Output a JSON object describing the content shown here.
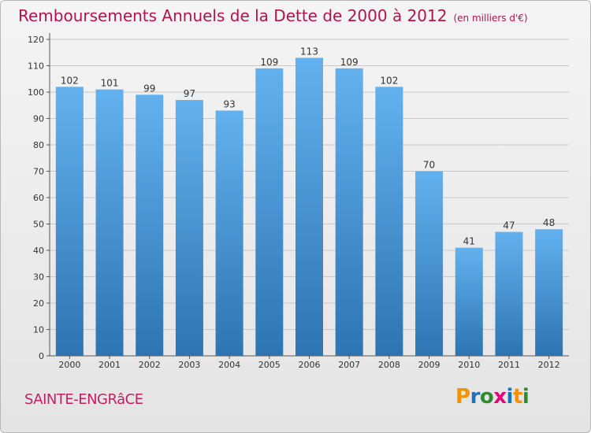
{
  "header": {
    "title": "Remboursements Annuels de la Dette de 2000 à 2012",
    "unit": "(en milliers d'€)"
  },
  "footer": {
    "commune": "SAINTE-ENGRâCE",
    "logo_text": "Proxiti"
  },
  "colors": {
    "title": "#b2124e",
    "bar_top": "#62b1ee",
    "bar_bottom": "#2d74b2",
    "grid": "#c8c8c8",
    "logo": [
      "#f39200",
      "#1d71b8",
      "#2e8b2e",
      "#e6007e",
      "#1d71b8",
      "#f39200",
      "#2e8b2e"
    ]
  },
  "chart_data": {
    "type": "bar",
    "title": "Remboursements Annuels de la Dette de 2000 à 2012",
    "xlabel": "",
    "ylabel": "",
    "categories": [
      "2000",
      "2001",
      "2002",
      "2003",
      "2004",
      "2005",
      "2006",
      "2007",
      "2008",
      "2009",
      "2010",
      "2011",
      "2012"
    ],
    "values": [
      102,
      101,
      99,
      97,
      93,
      109,
      113,
      109,
      102,
      70,
      41,
      47,
      48
    ],
    "ylim": [
      0,
      120
    ],
    "yticks": [
      0,
      10,
      20,
      30,
      40,
      50,
      60,
      70,
      80,
      90,
      100,
      110,
      120
    ],
    "grid": true
  }
}
